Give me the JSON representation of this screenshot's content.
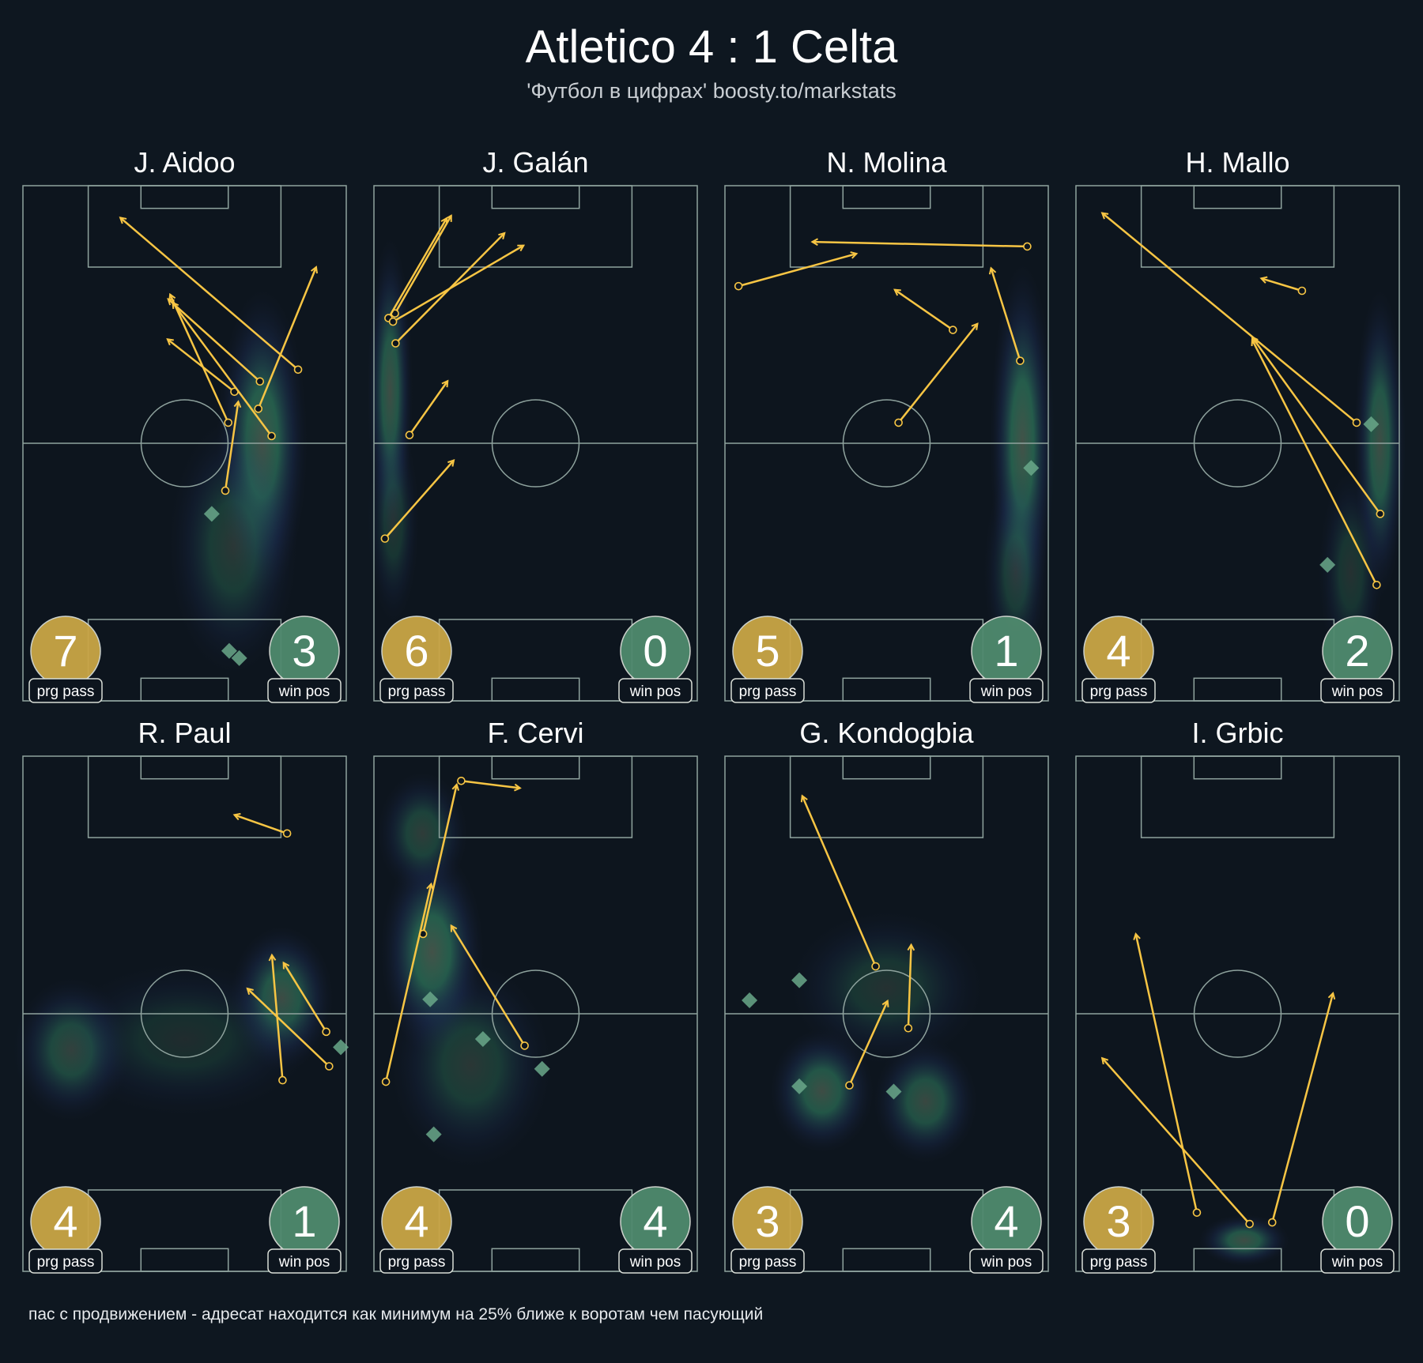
{
  "header": {
    "title": "Atletico 4 : 1 Celta",
    "subtitle": "'Футбол в цифрах' boosty.to/markstats"
  },
  "footer": "пас с продвижением - адресат находится как минимум на 25% ближе к воротам чем пасующий",
  "colors": {
    "background": "#0e1720",
    "lines": "#8fa39e",
    "pass": "#f7c544",
    "prg_badge": "#c9a646",
    "win_badge": "#4f8a6e",
    "diamond": "#6aa889"
  },
  "chart_data": {
    "type": "pitch-pass-map",
    "pitch_units": "percent of width (x) and length (y), attacking upward",
    "labels": {
      "prg": "prg pass",
      "win": "win pos"
    },
    "players": [
      {
        "name": "J. Aidoo",
        "prg": 7,
        "win": 3,
        "passes": [
          [
            85.1,
            64.3,
            30.1,
            93.8
          ],
          [
            73.3,
            62.0,
            44.9,
            78.0
          ],
          [
            65.4,
            60.0,
            44.7,
            70.2
          ],
          [
            63.5,
            54.0,
            45.5,
            78.9
          ],
          [
            76.9,
            51.4,
            46.3,
            77.3
          ],
          [
            72.8,
            56.7,
            90.7,
            84.2
          ],
          [
            62.6,
            40.8,
            66.6,
            58.1
          ]
        ],
        "wins": [
          [
            58.4,
            36.3
          ],
          [
            63.8,
            9.7
          ],
          [
            66.9,
            8.3
          ]
        ],
        "heat": [
          [
            74,
            50,
            14,
            30,
            0.55
          ],
          [
            65,
            30,
            20,
            25,
            0.3
          ]
        ]
      },
      {
        "name": "J. Galán",
        "prg": 6,
        "win": 0,
        "passes": [
          [
            6.5,
            75.2,
            23.9,
            94.2
          ],
          [
            4.5,
            74.3,
            22.5,
            93.7
          ],
          [
            5.9,
            73.6,
            46.3,
            88.4
          ],
          [
            6.7,
            69.4,
            40.4,
            90.8
          ],
          [
            11.0,
            51.6,
            22.8,
            62.1
          ],
          [
            3.4,
            31.5,
            24.7,
            46.7
          ]
        ],
        "wins": [],
        "heat": [
          [
            5,
            60,
            7,
            30,
            0.5
          ],
          [
            6,
            35,
            8,
            20,
            0.25
          ]
        ]
      },
      {
        "name": "N. Molina",
        "prg": 5,
        "win": 1,
        "passes": [
          [
            4.2,
            80.5,
            40.7,
            86.8
          ],
          [
            93.5,
            88.2,
            27.0,
            89.1
          ],
          [
            70.5,
            72.0,
            52.5,
            79.8
          ],
          [
            91.3,
            66.0,
            82.3,
            84.0
          ],
          [
            53.7,
            54.0,
            78.1,
            73.2
          ]
        ],
        "wins": [
          [
            94.7,
            45.2
          ]
        ],
        "heat": [
          [
            92,
            50,
            10,
            35,
            0.55
          ],
          [
            90,
            25,
            10,
            20,
            0.3
          ]
        ]
      },
      {
        "name": "H. Mallo",
        "prg": 4,
        "win": 2,
        "passes": [
          [
            86.8,
            54.0,
            8.1,
            94.7
          ],
          [
            69.9,
            79.6,
            57.3,
            82.0
          ],
          [
            94.1,
            36.3,
            54.5,
            70.6
          ],
          [
            93.0,
            22.5,
            54.5,
            70.1
          ]
        ],
        "wins": [
          [
            91.3,
            53.7
          ],
          [
            77.8,
            26.4
          ]
        ],
        "heat": [
          [
            94,
            50,
            8,
            30,
            0.5
          ],
          [
            85,
            25,
            10,
            20,
            0.25
          ]
        ]
      },
      {
        "name": "R. Paul",
        "prg": 4,
        "win": 1,
        "passes": [
          [
            81.7,
            85.0,
            65.4,
            88.6
          ],
          [
            93.8,
            46.5,
            80.6,
            59.9
          ],
          [
            94.7,
            39.8,
            69.4,
            54.9
          ],
          [
            80.3,
            37.1,
            77.0,
            61.4
          ]
        ],
        "wins": [
          [
            98.3,
            43.5
          ]
        ],
        "heat": [
          [
            80,
            53,
            16,
            14,
            0.5
          ],
          [
            15,
            43,
            18,
            14,
            0.4
          ],
          [
            50,
            45,
            40,
            15,
            0.2
          ]
        ]
      },
      {
        "name": "F. Cervi",
        "prg": 4,
        "win": 4,
        "passes": [
          [
            27.0,
            95.2,
            45.2,
            93.8
          ],
          [
            15.2,
            65.5,
            25.6,
            94.5
          ],
          [
            3.7,
            36.8,
            17.7,
            75.2
          ],
          [
            46.6,
            43.8,
            23.9,
            67.1
          ]
        ],
        "wins": [
          [
            17.4,
            52.8
          ],
          [
            33.7,
            45.1
          ],
          [
            52.0,
            39.3
          ],
          [
            18.5,
            26.6
          ]
        ],
        "heat": [
          [
            18,
            62,
            16,
            20,
            0.55
          ],
          [
            15,
            85,
            14,
            12,
            0.35
          ],
          [
            30,
            40,
            25,
            20,
            0.3
          ]
        ]
      },
      {
        "name": "G. Kondogbia",
        "prg": 3,
        "win": 4,
        "passes": [
          [
            46.6,
            59.2,
            23.9,
            92.3
          ],
          [
            56.7,
            47.2,
            57.6,
            63.4
          ],
          [
            38.5,
            36.1,
            50.3,
            52.5
          ]
        ],
        "wins": [
          [
            7.6,
            52.6
          ],
          [
            23.0,
            56.5
          ],
          [
            23.0,
            35.9
          ],
          [
            52.2,
            34.9
          ]
        ],
        "heat": [
          [
            30,
            35,
            16,
            12,
            0.5
          ],
          [
            62,
            33,
            16,
            12,
            0.45
          ],
          [
            50,
            55,
            30,
            15,
            0.25
          ]
        ]
      },
      {
        "name": "I. Grbic",
        "prg": 3,
        "win": 0,
        "passes": [
          [
            37.4,
            11.4,
            18.5,
            65.5
          ],
          [
            53.7,
            9.2,
            8.1,
            41.4
          ],
          [
            60.7,
            9.5,
            79.5,
            54.0
          ]
        ],
        "wins": [],
        "heat": [
          [
            52,
            6,
            14,
            5,
            0.5
          ]
        ]
      }
    ]
  }
}
